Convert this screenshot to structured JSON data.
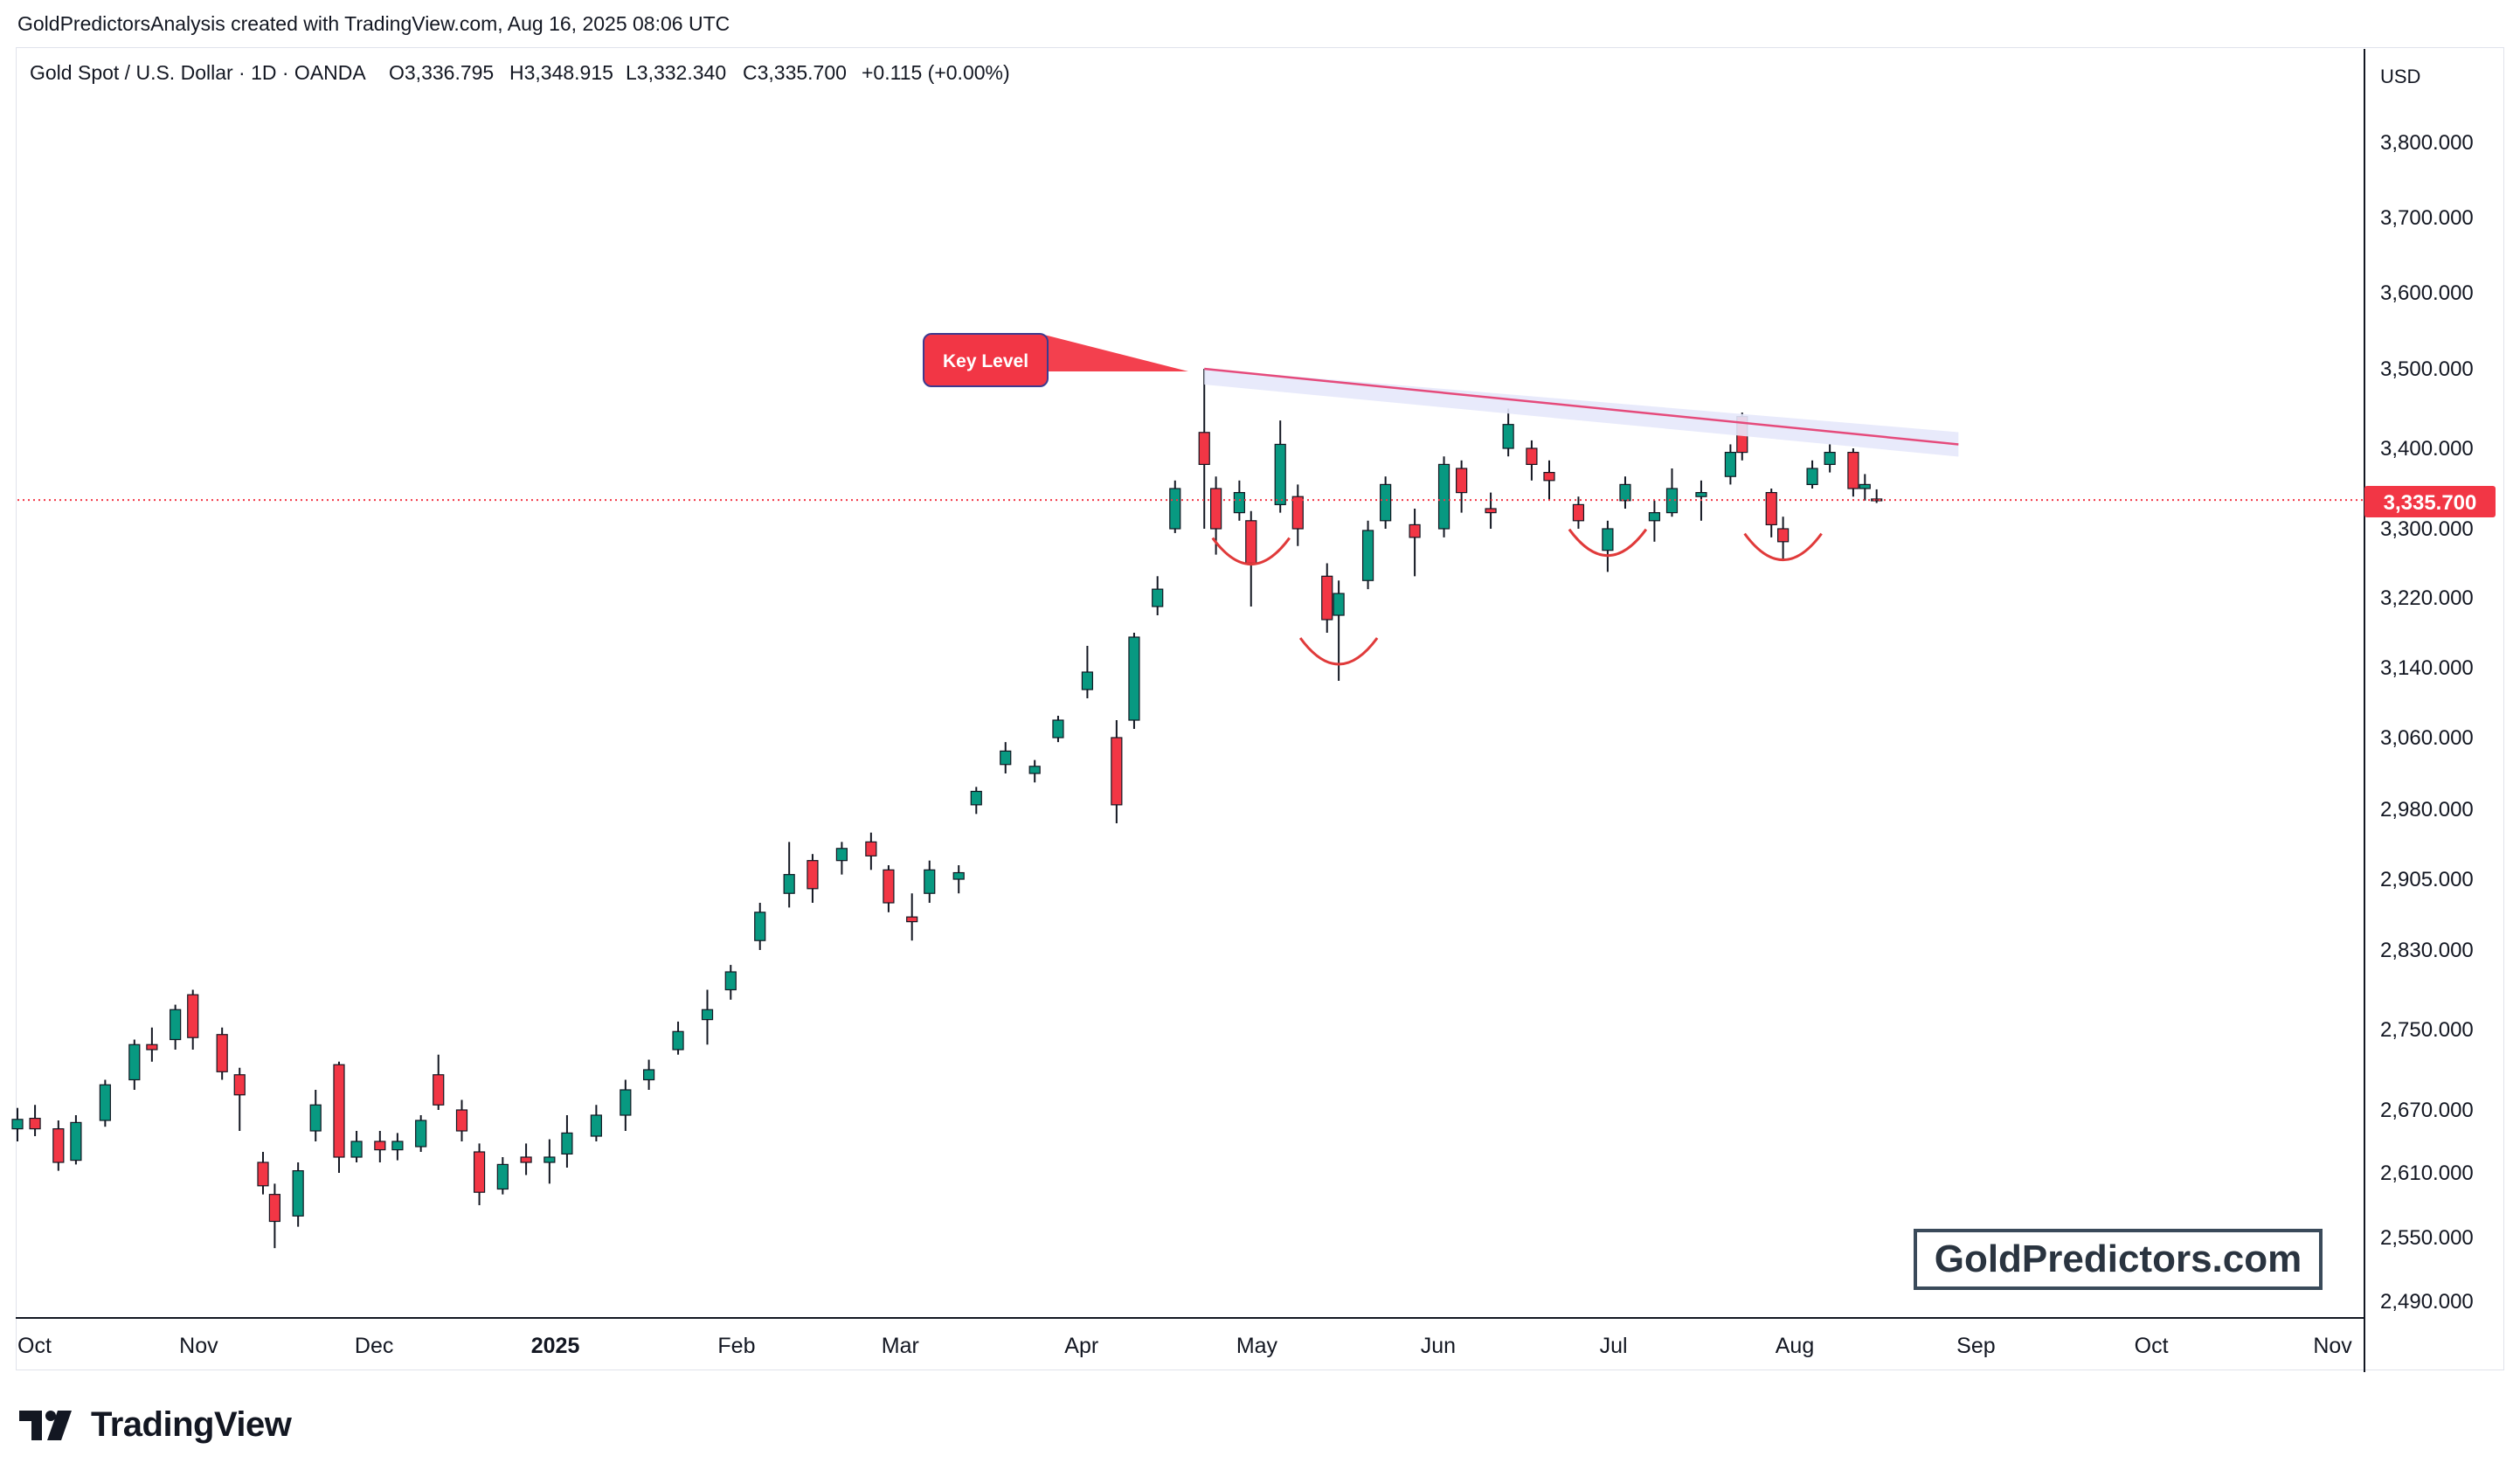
{
  "header": {
    "credit": "GoldPredictorsAnalysis created with TradingView.com, Aug 16, 2025 08:06 UTC"
  },
  "legend": {
    "symbol": "Gold Spot / U.S. Dollar · 1D · OANDA",
    "open": "O3,336.795",
    "high": "H3,348.915",
    "low": "L3,332.340",
    "close": "C3,335.700",
    "change": "+0.115 (+0.00%)"
  },
  "axis": {
    "currency": "USD",
    "price_labels": [
      "3,800.000",
      "3,700.000",
      "3,600.000",
      "3,500.000",
      "3,400.000",
      "3,300.000",
      "3,220.000",
      "3,140.000",
      "3,060.000",
      "2,980.000",
      "2,905.000",
      "2,830.000",
      "2,750.000",
      "2,670.000",
      "2,610.000",
      "2,550.000",
      "2,490.000"
    ],
    "time_labels": [
      "Oct",
      "Nov",
      "Dec",
      "2025",
      "Feb",
      "Mar",
      "Apr",
      "May",
      "Jun",
      "Jul",
      "Aug",
      "Sep",
      "Oct",
      "Nov"
    ],
    "last_price": "3,335.700"
  },
  "annotation": {
    "key_level": "Key Level",
    "watermark": "GoldPredictors.com"
  },
  "brand": {
    "name": "TradingView"
  },
  "colors": {
    "up": "#089981",
    "down": "#f23645",
    "trendline": "#e54a7b",
    "key_level_bg": "#f23645",
    "last_price_bg": "#f23645",
    "text": "#131722"
  },
  "chart_data": {
    "type": "candlestick",
    "title": "Gold Spot / U.S. Dollar · 1D · OANDA",
    "ylabel": "USD",
    "ylim": [
      2490,
      3800
    ],
    "x_period": [
      "2024-09-30",
      "2025-11-30"
    ],
    "last_close": 3335.7,
    "key_level": {
      "label": "Key Level",
      "from": {
        "date": "2025-04-22",
        "price": 3500
      },
      "to": {
        "date": "2025-08-29",
        "price": 3405
      }
    },
    "double_bottom_marks": [
      {
        "date": "2025-04-30",
        "price": 3265
      },
      {
        "date": "2025-05-15",
        "price": 3150
      },
      {
        "date": "2025-06-30",
        "price": 3275
      },
      {
        "date": "2025-07-30",
        "price": 3270
      }
    ],
    "candles": [
      {
        "date": "2024-10-01",
        "open": 2652,
        "high": 2672,
        "low": 2640,
        "close": 2661
      },
      {
        "date": "2024-10-04",
        "open": 2662,
        "high": 2675,
        "low": 2645,
        "close": 2652
      },
      {
        "date": "2024-10-08",
        "open": 2652,
        "high": 2660,
        "low": 2612,
        "close": 2620
      },
      {
        "date": "2024-10-11",
        "open": 2622,
        "high": 2665,
        "low": 2618,
        "close": 2658
      },
      {
        "date": "2024-10-16",
        "open": 2660,
        "high": 2700,
        "low": 2654,
        "close": 2695
      },
      {
        "date": "2024-10-21",
        "open": 2700,
        "high": 2740,
        "low": 2690,
        "close": 2735
      },
      {
        "date": "2024-10-24",
        "open": 2735,
        "high": 2752,
        "low": 2718,
        "close": 2730
      },
      {
        "date": "2024-10-28",
        "open": 2740,
        "high": 2775,
        "low": 2730,
        "close": 2770
      },
      {
        "date": "2024-10-31",
        "open": 2785,
        "high": 2790,
        "low": 2730,
        "close": 2742
      },
      {
        "date": "2024-11-05",
        "open": 2745,
        "high": 2752,
        "low": 2700,
        "close": 2708
      },
      {
        "date": "2024-11-08",
        "open": 2705,
        "high": 2712,
        "low": 2650,
        "close": 2685
      },
      {
        "date": "2024-11-12",
        "open": 2620,
        "high": 2630,
        "low": 2590,
        "close": 2598
      },
      {
        "date": "2024-11-14",
        "open": 2590,
        "high": 2600,
        "low": 2540,
        "close": 2565
      },
      {
        "date": "2024-11-18",
        "open": 2570,
        "high": 2620,
        "low": 2560,
        "close": 2612
      },
      {
        "date": "2024-11-21",
        "open": 2650,
        "high": 2690,
        "low": 2640,
        "close": 2675
      },
      {
        "date": "2024-11-25",
        "open": 2715,
        "high": 2718,
        "low": 2610,
        "close": 2625
      },
      {
        "date": "2024-11-28",
        "open": 2625,
        "high": 2650,
        "low": 2620,
        "close": 2640
      },
      {
        "date": "2024-12-02",
        "open": 2640,
        "high": 2650,
        "low": 2620,
        "close": 2632
      },
      {
        "date": "2024-12-05",
        "open": 2632,
        "high": 2648,
        "low": 2622,
        "close": 2640
      },
      {
        "date": "2024-12-09",
        "open": 2635,
        "high": 2665,
        "low": 2630,
        "close": 2660
      },
      {
        "date": "2024-12-12",
        "open": 2705,
        "high": 2725,
        "low": 2670,
        "close": 2675
      },
      {
        "date": "2024-12-16",
        "open": 2670,
        "high": 2680,
        "low": 2640,
        "close": 2650
      },
      {
        "date": "2024-12-19",
        "open": 2630,
        "high": 2638,
        "low": 2580,
        "close": 2592
      },
      {
        "date": "2024-12-23",
        "open": 2595,
        "high": 2625,
        "low": 2590,
        "close": 2618
      },
      {
        "date": "2024-12-27",
        "open": 2625,
        "high": 2638,
        "low": 2608,
        "close": 2620
      },
      {
        "date": "2024-12-31",
        "open": 2620,
        "high": 2642,
        "low": 2600,
        "close": 2625
      },
      {
        "date": "2025-01-03",
        "open": 2628,
        "high": 2665,
        "low": 2615,
        "close": 2648
      },
      {
        "date": "2025-01-08",
        "open": 2645,
        "high": 2675,
        "low": 2640,
        "close": 2665
      },
      {
        "date": "2025-01-13",
        "open": 2665,
        "high": 2700,
        "low": 2650,
        "close": 2690
      },
      {
        "date": "2025-01-17",
        "open": 2700,
        "high": 2720,
        "low": 2690,
        "close": 2710
      },
      {
        "date": "2025-01-22",
        "open": 2730,
        "high": 2758,
        "low": 2725,
        "close": 2748
      },
      {
        "date": "2025-01-27",
        "open": 2760,
        "high": 2790,
        "low": 2735,
        "close": 2770
      },
      {
        "date": "2025-01-31",
        "open": 2790,
        "high": 2815,
        "low": 2780,
        "close": 2808
      },
      {
        "date": "2025-02-05",
        "open": 2840,
        "high": 2880,
        "low": 2830,
        "close": 2870
      },
      {
        "date": "2025-02-10",
        "open": 2890,
        "high": 2945,
        "low": 2875,
        "close": 2910
      },
      {
        "date": "2025-02-14",
        "open": 2925,
        "high": 2932,
        "low": 2880,
        "close": 2895
      },
      {
        "date": "2025-02-19",
        "open": 2925,
        "high": 2945,
        "low": 2910,
        "close": 2938
      },
      {
        "date": "2025-02-24",
        "open": 2945,
        "high": 2955,
        "low": 2915,
        "close": 2930
      },
      {
        "date": "2025-02-27",
        "open": 2915,
        "high": 2920,
        "low": 2870,
        "close": 2880
      },
      {
        "date": "2025-03-03",
        "open": 2865,
        "high": 2890,
        "low": 2840,
        "close": 2860
      },
      {
        "date": "2025-03-06",
        "open": 2890,
        "high": 2925,
        "low": 2880,
        "close": 2915
      },
      {
        "date": "2025-03-11",
        "open": 2905,
        "high": 2920,
        "low": 2890,
        "close": 2912
      },
      {
        "date": "2025-03-14",
        "open": 2985,
        "high": 3005,
        "low": 2975,
        "close": 3000
      },
      {
        "date": "2025-03-19",
        "open": 3030,
        "high": 3055,
        "low": 3020,
        "close": 3045
      },
      {
        "date": "2025-03-24",
        "open": 3020,
        "high": 3035,
        "low": 3010,
        "close": 3028
      },
      {
        "date": "2025-03-28",
        "open": 3060,
        "high": 3085,
        "low": 3055,
        "close": 3080
      },
      {
        "date": "2025-04-02",
        "open": 3115,
        "high": 3165,
        "low": 3105,
        "close": 3135
      },
      {
        "date": "2025-04-07",
        "open": 3060,
        "high": 3080,
        "low": 2965,
        "close": 2985
      },
      {
        "date": "2025-04-10",
        "open": 3080,
        "high": 3180,
        "low": 3070,
        "close": 3175
      },
      {
        "date": "2025-04-14",
        "open": 3210,
        "high": 3245,
        "low": 3200,
        "close": 3230
      },
      {
        "date": "2025-04-17",
        "open": 3300,
        "high": 3360,
        "low": 3295,
        "close": 3350
      },
      {
        "date": "2025-04-22",
        "open": 3420,
        "high": 3500,
        "low": 3300,
        "close": 3380
      },
      {
        "date": "2025-04-24",
        "open": 3350,
        "high": 3365,
        "low": 3270,
        "close": 3300
      },
      {
        "date": "2025-04-28",
        "open": 3320,
        "high": 3360,
        "low": 3310,
        "close": 3345
      },
      {
        "date": "2025-04-30",
        "open": 3310,
        "high": 3322,
        "low": 3210,
        "close": 3260
      },
      {
        "date": "2025-05-05",
        "open": 3330,
        "high": 3435,
        "low": 3320,
        "close": 3405
      },
      {
        "date": "2025-05-08",
        "open": 3340,
        "high": 3355,
        "low": 3280,
        "close": 3300
      },
      {
        "date": "2025-05-13",
        "open": 3245,
        "high": 3260,
        "low": 3180,
        "close": 3195
      },
      {
        "date": "2025-05-15",
        "open": 3200,
        "high": 3240,
        "low": 3125,
        "close": 3225
      },
      {
        "date": "2025-05-20",
        "open": 3240,
        "high": 3310,
        "low": 3230,
        "close": 3298
      },
      {
        "date": "2025-05-23",
        "open": 3310,
        "high": 3365,
        "low": 3300,
        "close": 3355
      },
      {
        "date": "2025-05-28",
        "open": 3305,
        "high": 3325,
        "low": 3245,
        "close": 3290
      },
      {
        "date": "2025-06-02",
        "open": 3300,
        "high": 3390,
        "low": 3290,
        "close": 3380
      },
      {
        "date": "2025-06-05",
        "open": 3375,
        "high": 3385,
        "low": 3320,
        "close": 3345
      },
      {
        "date": "2025-06-10",
        "open": 3325,
        "high": 3345,
        "low": 3300,
        "close": 3320
      },
      {
        "date": "2025-06-13",
        "open": 3400,
        "high": 3450,
        "low": 3390,
        "close": 3430
      },
      {
        "date": "2025-06-17",
        "open": 3400,
        "high": 3410,
        "low": 3360,
        "close": 3380
      },
      {
        "date": "2025-06-20",
        "open": 3370,
        "high": 3385,
        "low": 3335,
        "close": 3360
      },
      {
        "date": "2025-06-25",
        "open": 3330,
        "high": 3340,
        "low": 3300,
        "close": 3310
      },
      {
        "date": "2025-06-30",
        "open": 3275,
        "high": 3310,
        "low": 3250,
        "close": 3300
      },
      {
        "date": "2025-07-03",
        "open": 3335,
        "high": 3365,
        "low": 3325,
        "close": 3355
      },
      {
        "date": "2025-07-08",
        "open": 3310,
        "high": 3335,
        "low": 3285,
        "close": 3320
      },
      {
        "date": "2025-07-11",
        "open": 3320,
        "high": 3375,
        "low": 3315,
        "close": 3350
      },
      {
        "date": "2025-07-16",
        "open": 3340,
        "high": 3360,
        "low": 3310,
        "close": 3345
      },
      {
        "date": "2025-07-21",
        "open": 3365,
        "high": 3405,
        "low": 3355,
        "close": 3395
      },
      {
        "date": "2025-07-23",
        "open": 3440,
        "high": 3445,
        "low": 3385,
        "close": 3395
      },
      {
        "date": "2025-07-28",
        "open": 3345,
        "high": 3350,
        "low": 3290,
        "close": 3305
      },
      {
        "date": "2025-07-30",
        "open": 3300,
        "high": 3315,
        "low": 3265,
        "close": 3285
      },
      {
        "date": "2025-08-04",
        "open": 3355,
        "high": 3385,
        "low": 3350,
        "close": 3375
      },
      {
        "date": "2025-08-07",
        "open": 3380,
        "high": 3405,
        "low": 3370,
        "close": 3395
      },
      {
        "date": "2025-08-11",
        "open": 3395,
        "high": 3400,
        "low": 3340,
        "close": 3350
      },
      {
        "date": "2025-08-13",
        "open": 3350,
        "high": 3368,
        "low": 3335,
        "close": 3355
      },
      {
        "date": "2025-08-15",
        "open": 3337,
        "high": 3349,
        "low": 3332,
        "close": 3336
      }
    ]
  }
}
